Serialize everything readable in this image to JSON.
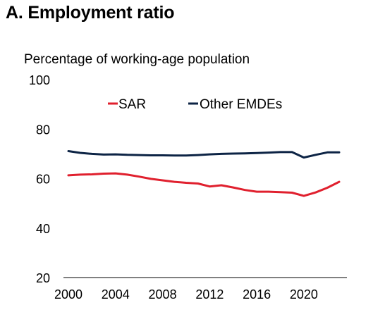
{
  "chart_data": {
    "type": "line",
    "title": "A. Employment ratio",
    "subtitle": "Percentage of working-age population",
    "xlabel": "",
    "ylabel": "",
    "xlim": [
      2000,
      2023
    ],
    "ylim": [
      20,
      100
    ],
    "x_ticks": [
      2000,
      2004,
      2008,
      2012,
      2016,
      2020
    ],
    "y_ticks": [
      20,
      40,
      60,
      80,
      100
    ],
    "grid": false,
    "legend_position": "top-center",
    "x": [
      2000,
      2001,
      2002,
      2003,
      2004,
      2005,
      2006,
      2007,
      2008,
      2009,
      2010,
      2011,
      2012,
      2013,
      2014,
      2015,
      2016,
      2017,
      2018,
      2019,
      2020,
      2021,
      2022,
      2023
    ],
    "series": [
      {
        "name": "SAR",
        "color": "#e0202e",
        "values": [
          61.3,
          61.6,
          61.7,
          62.0,
          62.1,
          61.6,
          60.8,
          59.9,
          59.3,
          58.7,
          58.3,
          58.0,
          56.8,
          57.3,
          56.4,
          55.4,
          54.7,
          54.7,
          54.5,
          54.3,
          53.0,
          54.4,
          56.3,
          58.7
        ]
      },
      {
        "name": "Other EMDEs",
        "color": "#0d2445",
        "values": [
          71.1,
          70.4,
          70.0,
          69.7,
          69.8,
          69.6,
          69.5,
          69.4,
          69.4,
          69.3,
          69.3,
          69.5,
          69.8,
          70.0,
          70.1,
          70.2,
          70.3,
          70.5,
          70.7,
          70.7,
          68.5,
          69.6,
          70.6,
          70.6
        ]
      }
    ]
  }
}
